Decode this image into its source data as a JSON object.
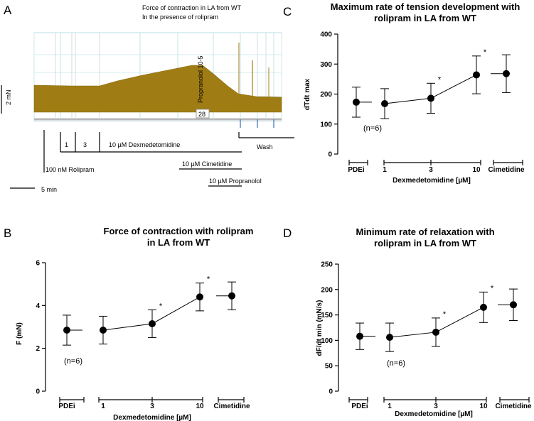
{
  "panel_a": {
    "letter": "A",
    "caption_line1": "Force of contraction in LA from WT",
    "caption_line2": "In the presence of rolipram",
    "scale_force": "2 mN",
    "scale_time": "5 min",
    "trace_label": "Propranolol 10-5",
    "trace_box": "28",
    "labels": {
      "rolipram": "100 nM Rolipram",
      "dex_1": "1",
      "dex_3": "3",
      "dex": "10 µM Dexmedetomidine",
      "cimetidine": "10 µM Cimetidine",
      "propranolol": "10 µM Propranolol",
      "wash": "Wash"
    },
    "trace_color": "#a07d14"
  },
  "chart_data": [
    {
      "panel": "B",
      "type": "scatter",
      "title_line1": "Force of contraction with rolipram",
      "title_line2": "in LA from WT",
      "ylabel": "F (mN)",
      "xlabel": "Dexmedetomidine [µM]",
      "ylim": [
        0,
        6
      ],
      "yticks": [
        "0",
        "2",
        "4",
        "6"
      ],
      "group_labels": [
        "PDEi",
        "1",
        "3",
        "10",
        "Cimetidine"
      ],
      "means": [
        2.85,
        2.85,
        3.15,
        4.4,
        4.45
      ],
      "errors": [
        0.7,
        0.65,
        0.65,
        0.65,
        0.65
      ],
      "significance": [
        "",
        "",
        "*",
        "*",
        ""
      ],
      "n_label": "(n=6)"
    },
    {
      "panel": "C",
      "type": "scatter",
      "title_line1": "Maximum rate of tension development with",
      "title_line2": "rolipram in LA from  WT",
      "ylabel": "dTdt max",
      "xlabel": "Dexmedetomidine [µM]",
      "ylim": [
        0,
        400
      ],
      "yticks": [
        "0",
        "100",
        "200",
        "300",
        "400"
      ],
      "group_labels": [
        "PDEi",
        "1",
        "3",
        "10",
        "Cimetidine"
      ],
      "means": [
        173,
        168,
        186,
        264,
        268
      ],
      "errors": [
        50,
        50,
        50,
        63,
        63
      ],
      "significance": [
        "",
        "",
        "*",
        "*",
        ""
      ],
      "n_label": "(n=6)"
    },
    {
      "panel": "D",
      "type": "scatter",
      "title_line1": "Minimum rate of relaxation with",
      "title_line2": "rolipram in LA from WT",
      "ylabel": "dF/dt min (mN/s)",
      "xlabel": "Dexmedetomidine [µM]",
      "ylim": [
        0,
        250
      ],
      "yticks": [
        "0",
        "50",
        "100",
        "150",
        "200",
        "250"
      ],
      "group_labels": [
        "PDEi",
        "1",
        "3",
        "10",
        "Cimetidine"
      ],
      "means": [
        108,
        106,
        116,
        165,
        170
      ],
      "errors": [
        26,
        28,
        28,
        30,
        31
      ],
      "significance": [
        "",
        "",
        "*",
        "*",
        ""
      ],
      "n_label": "(n=6)"
    }
  ]
}
